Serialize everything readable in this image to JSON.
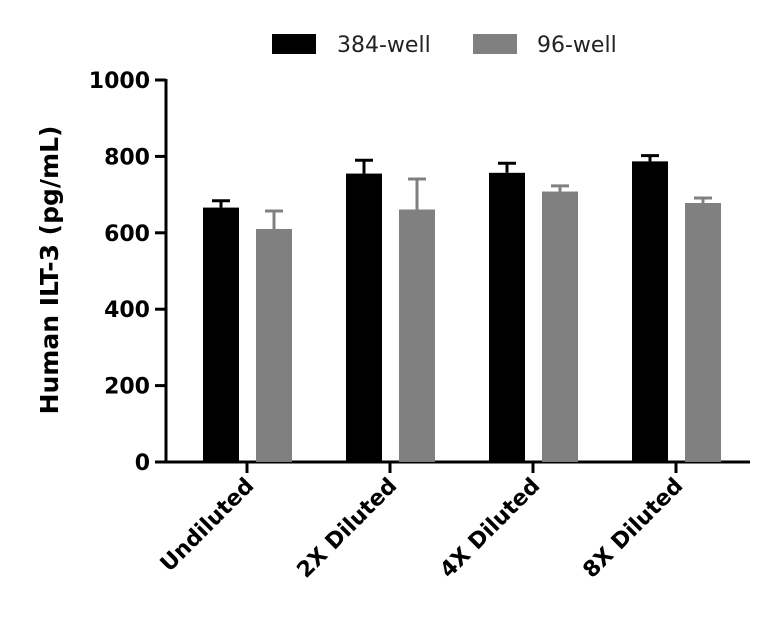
{
  "chart_data": {
    "type": "bar",
    "title": "",
    "xlabel": "",
    "ylabel": "Human  ILT-3 (pg/mL)",
    "ylim": [
      0,
      1000
    ],
    "yticks": [
      "0",
      "200",
      "400",
      "600",
      "800",
      "1000"
    ],
    "ytick_values": [
      0,
      200,
      400,
      600,
      800,
      1000
    ],
    "categories": [
      "Undiluted",
      "2X Diluted",
      "4X Diluted",
      "8X Diluted"
    ],
    "legend_position": "top",
    "grid": false,
    "series": [
      {
        "name": "384-well",
        "color": "#000000",
        "values": [
          666,
          755,
          757,
          787
        ],
        "error": [
          18,
          35,
          25,
          15
        ]
      },
      {
        "name": "96-well",
        "color": "#808080",
        "values": [
          610,
          661,
          708,
          678
        ],
        "error": [
          47,
          80,
          15,
          13
        ]
      }
    ]
  }
}
